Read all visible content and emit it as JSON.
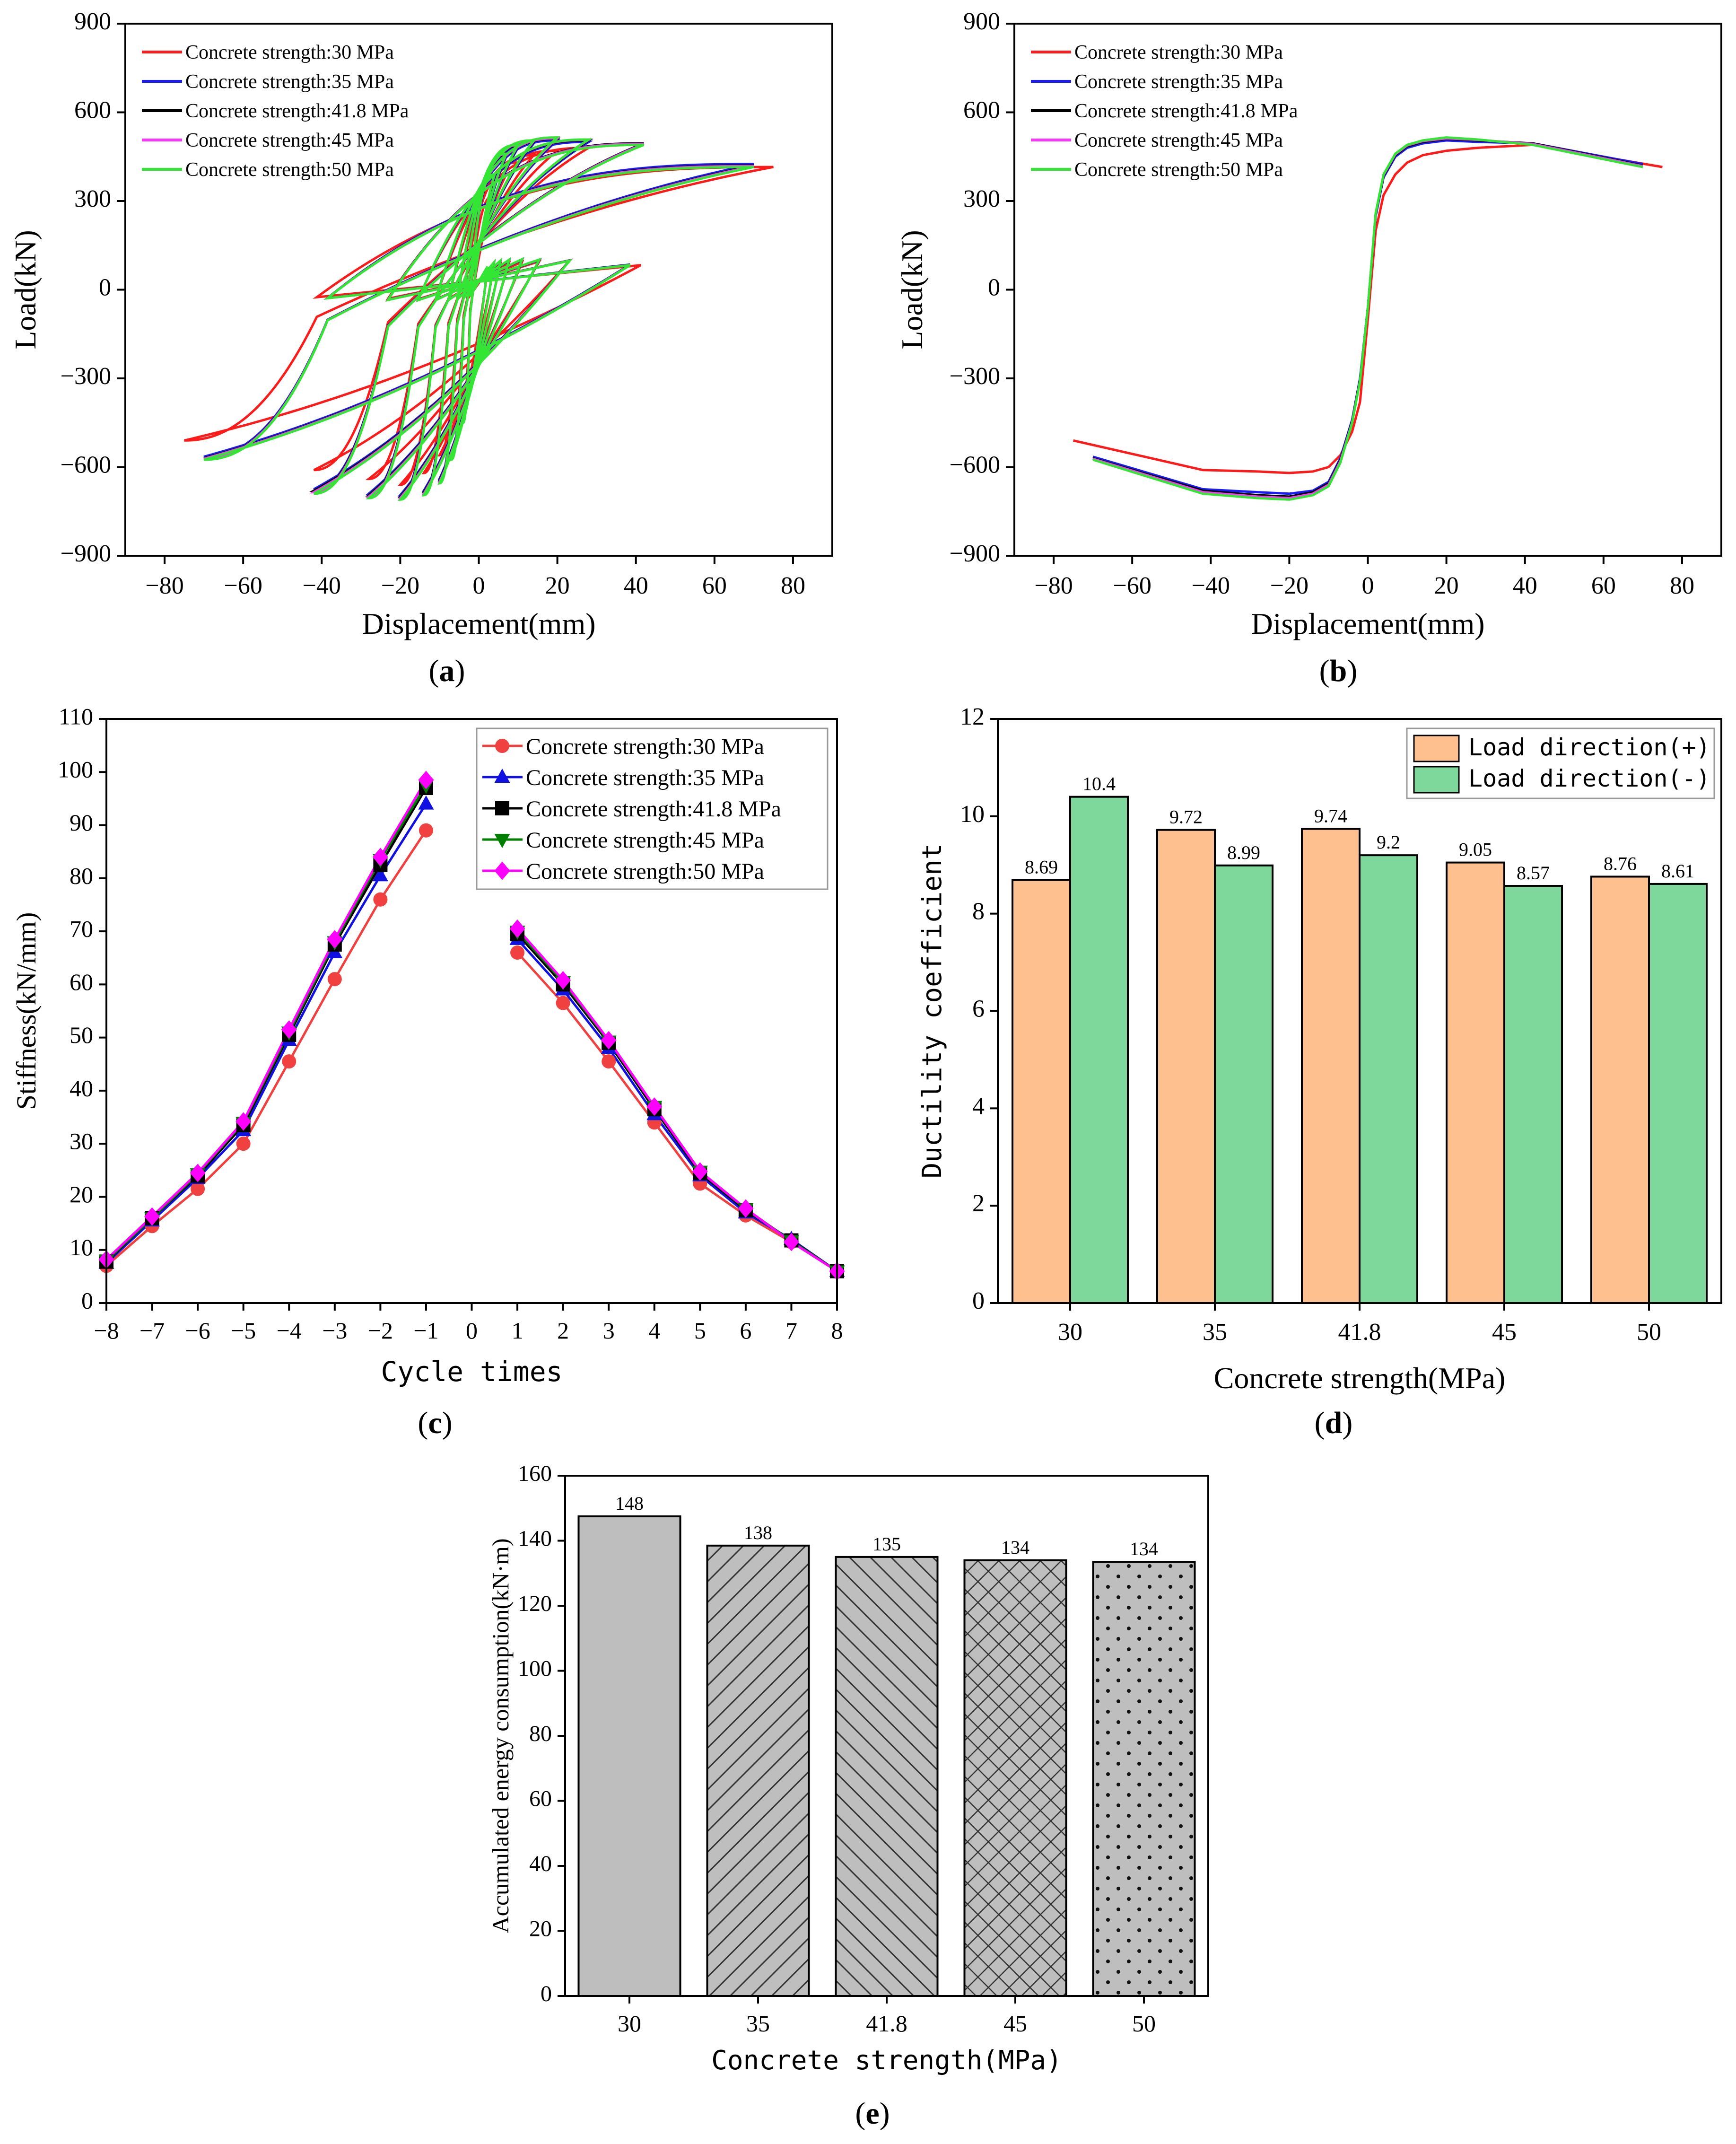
{
  "chart_data": [
    {
      "id": "a",
      "type": "line",
      "panel_label": "(a)",
      "panel_letter": "a",
      "xlabel": "Displacement(mm)",
      "ylabel": "Load(kN)",
      "xlim": [
        -90,
        90
      ],
      "ylim": [
        -900,
        900
      ],
      "xticks": [
        -80,
        -60,
        -40,
        -20,
        0,
        20,
        40,
        60,
        80
      ],
      "yticks": [
        -900,
        -600,
        -300,
        0,
        300,
        600,
        900
      ],
      "legend_position": "top-left",
      "series": [
        {
          "name": "Concrete strength:30 MPa",
          "color": "#ff1a1a",
          "loops": [
            {
              "amp": 75,
              "pos": 415,
              "neg": -510
            },
            {
              "amp": 42,
              "pos": 490,
              "neg": -610
            },
            {
              "amp": 28,
              "pos": 480,
              "neg": -640
            },
            {
              "amp": 20,
              "pos": 470,
              "neg": -660
            },
            {
              "amp": 14,
              "pos": 455,
              "neg": -620
            },
            {
              "amp": 10,
              "pos": 430,
              "neg": -560
            },
            {
              "amp": 7,
              "pos": 390,
              "neg": -480
            },
            {
              "amp": 4,
              "pos": 320,
              "neg": -380
            }
          ]
        },
        {
          "name": "Concrete strength:35 MPa",
          "color": "#1a1aff",
          "loops": [
            {
              "amp": 70,
              "pos": 425,
              "neg": -565
            },
            {
              "amp": 42,
              "pos": 495,
              "neg": -675
            },
            {
              "amp": 28,
              "pos": 500,
              "neg": -690
            },
            {
              "amp": 20,
              "pos": 505,
              "neg": -695
            },
            {
              "amp": 14,
              "pos": 495,
              "neg": -680
            },
            {
              "amp": 10,
              "pos": 480,
              "neg": -640
            },
            {
              "amp": 7,
              "pos": 450,
              "neg": -560
            },
            {
              "amp": 4,
              "pos": 380,
              "neg": -440
            }
          ]
        },
        {
          "name": "Concrete strength:41.8 MPa",
          "color": "#000000",
          "loops": [
            {
              "amp": 70,
              "pos": 420,
              "neg": -570
            },
            {
              "amp": 42,
              "pos": 495,
              "neg": -680
            },
            {
              "amp": 28,
              "pos": 505,
              "neg": -695
            },
            {
              "amp": 20,
              "pos": 510,
              "neg": -700
            },
            {
              "amp": 14,
              "pos": 500,
              "neg": -685
            },
            {
              "amp": 10,
              "pos": 485,
              "neg": -645
            },
            {
              "amp": 7,
              "pos": 455,
              "neg": -565
            },
            {
              "amp": 4,
              "pos": 385,
              "neg": -445
            }
          ]
        },
        {
          "name": "Concrete strength:45 MPa",
          "color": "#ff33ff",
          "loops": [
            {
              "amp": 70,
              "pos": 418,
              "neg": -572
            },
            {
              "amp": 42,
              "pos": 493,
              "neg": -685
            },
            {
              "amp": 28,
              "pos": 507,
              "neg": -700
            },
            {
              "amp": 20,
              "pos": 512,
              "neg": -705
            },
            {
              "amp": 14,
              "pos": 503,
              "neg": -690
            },
            {
              "amp": 10,
              "pos": 488,
              "neg": -650
            },
            {
              "amp": 7,
              "pos": 458,
              "neg": -570
            },
            {
              "amp": 4,
              "pos": 388,
              "neg": -448
            }
          ]
        },
        {
          "name": "Concrete strength:50 MPa",
          "color": "#33e633",
          "loops": [
            {
              "amp": 70,
              "pos": 415,
              "neg": -575
            },
            {
              "amp": 42,
              "pos": 490,
              "neg": -690
            },
            {
              "amp": 28,
              "pos": 508,
              "neg": -705
            },
            {
              "amp": 20,
              "pos": 515,
              "neg": -710
            },
            {
              "amp": 14,
              "pos": 505,
              "neg": -695
            },
            {
              "amp": 10,
              "pos": 490,
              "neg": -655
            },
            {
              "amp": 7,
              "pos": 460,
              "neg": -575
            },
            {
              "amp": 4,
              "pos": 390,
              "neg": -450
            }
          ]
        }
      ]
    },
    {
      "id": "b",
      "type": "line",
      "panel_label": "(b)",
      "panel_letter": "b",
      "xlabel": "Displacement(mm)",
      "ylabel": "Load(kN)",
      "xlim": [
        -90,
        90
      ],
      "ylim": [
        -900,
        900
      ],
      "xticks": [
        -80,
        -60,
        -40,
        -20,
        0,
        20,
        40,
        60,
        80
      ],
      "yticks": [
        -900,
        -600,
        -300,
        0,
        300,
        600,
        900
      ],
      "legend_position": "top-left",
      "series": [
        {
          "name": "Concrete strength:30 MPa",
          "color": "#ff1a1a",
          "x": [
            -75,
            -42,
            -28,
            -20,
            -14,
            -10,
            -7,
            -4,
            -2,
            0,
            2,
            4,
            7,
            10,
            14,
            20,
            28,
            42,
            75
          ],
          "y": [
            -510,
            -610,
            -615,
            -620,
            -615,
            -600,
            -560,
            -480,
            -380,
            -100,
            200,
            320,
            390,
            430,
            455,
            470,
            480,
            490,
            415
          ]
        },
        {
          "name": "Concrete strength:35 MPa",
          "color": "#1a1aff",
          "x": [
            -70,
            -42,
            -28,
            -20,
            -14,
            -10,
            -7,
            -4,
            -2,
            0,
            2,
            4,
            7,
            10,
            14,
            20,
            28,
            42,
            70
          ],
          "y": [
            -565,
            -675,
            -685,
            -690,
            -680,
            -650,
            -570,
            -440,
            -300,
            -60,
            250,
            380,
            450,
            480,
            495,
            505,
            500,
            495,
            425
          ]
        },
        {
          "name": "Concrete strength:41.8 MPa",
          "color": "#000000",
          "x": [
            -70,
            -42,
            -28,
            -20,
            -14,
            -10,
            -7,
            -4,
            -2,
            0,
            2,
            4,
            7,
            10,
            14,
            20,
            28,
            42,
            70
          ],
          "y": [
            -570,
            -680,
            -695,
            -700,
            -685,
            -655,
            -575,
            -445,
            -305,
            -60,
            255,
            385,
            455,
            485,
            500,
            510,
            505,
            495,
            420
          ]
        },
        {
          "name": "Concrete strength:45 MPa",
          "color": "#ff33ff",
          "x": [
            -70,
            -42,
            -28,
            -20,
            -14,
            -10,
            -7,
            -4,
            -2,
            0,
            2,
            4,
            7,
            10,
            14,
            20,
            28,
            42,
            70
          ],
          "y": [
            -572,
            -685,
            -700,
            -705,
            -690,
            -660,
            -580,
            -448,
            -308,
            -60,
            258,
            388,
            458,
            488,
            503,
            512,
            507,
            493,
            418
          ]
        },
        {
          "name": "Concrete strength:50 MPa",
          "color": "#33e633",
          "x": [
            -70,
            -42,
            -28,
            -20,
            -14,
            -10,
            -7,
            -4,
            -2,
            0,
            2,
            4,
            7,
            10,
            14,
            20,
            28,
            42,
            70
          ],
          "y": [
            -575,
            -690,
            -705,
            -710,
            -695,
            -665,
            -585,
            -450,
            -310,
            -60,
            260,
            390,
            460,
            490,
            505,
            515,
            508,
            490,
            415
          ]
        }
      ]
    },
    {
      "id": "c",
      "type": "line",
      "panel_label": "(c)",
      "panel_letter": "c",
      "xlabel": "Cycle times",
      "ylabel": "Stiffness(kN/mm)",
      "xlim": [
        -8,
        8
      ],
      "ylim": [
        0,
        110
      ],
      "xticks": [
        -8,
        -7,
        -6,
        -5,
        -4,
        -3,
        -2,
        -1,
        0,
        1,
        2,
        3,
        4,
        5,
        6,
        7,
        8
      ],
      "yticks": [
        0,
        10,
        20,
        30,
        40,
        50,
        60,
        70,
        80,
        90,
        100,
        110
      ],
      "legend_position": "top-right",
      "x_neg": [
        -8,
        -7,
        -6,
        -5,
        -4,
        -3,
        -2,
        -1
      ],
      "x_pos": [
        1,
        2,
        3,
        4,
        5,
        6,
        7,
        8
      ],
      "series": [
        {
          "name": "Concrete strength:30 MPa",
          "color": "#f04040",
          "marker": "circle",
          "neg": [
            7,
            14.5,
            21.5,
            30,
            45.5,
            61,
            76,
            89
          ],
          "pos": [
            66,
            56.5,
            45.5,
            34,
            22.5,
            16.5,
            11.5,
            6
          ]
        },
        {
          "name": "Concrete strength:35 MPa",
          "color": "#1010e0",
          "marker": "triangle-up",
          "neg": [
            7.5,
            15.5,
            23.5,
            32.5,
            49.5,
            66,
            80.5,
            94
          ],
          "pos": [
            68.5,
            59,
            48,
            35.5,
            24,
            17,
            12,
            6
          ]
        },
        {
          "name": "Concrete strength:41.8 MPa",
          "color": "#000000",
          "marker": "square",
          "neg": [
            7.8,
            16,
            24,
            33.5,
            50.5,
            67.5,
            82.5,
            97
          ],
          "pos": [
            69.5,
            60,
            49,
            36.5,
            24.5,
            17.5,
            11.8,
            6
          ]
        },
        {
          "name": "Concrete strength:45 MPa",
          "color": "#008000",
          "marker": "triangle-down",
          "neg": [
            8,
            16,
            24.3,
            34,
            51,
            68,
            83.5,
            97.5
          ],
          "pos": [
            70,
            60.5,
            49.3,
            37,
            24.8,
            17.7,
            11.7,
            6
          ]
        },
        {
          "name": "Concrete strength:50 MPa",
          "color": "#ff00ff",
          "marker": "diamond",
          "neg": [
            8.2,
            16.3,
            24.5,
            34.2,
            51.5,
            68.5,
            84,
            98.5
          ],
          "pos": [
            70.5,
            60.8,
            49.5,
            37,
            24.8,
            17.8,
            11.5,
            6
          ]
        }
      ]
    },
    {
      "id": "d",
      "type": "bar",
      "panel_label": "(d)",
      "panel_letter": "d",
      "xlabel": "Concrete strength(MPa)",
      "ylabel": "Ductility coefficient",
      "ylim": [
        0,
        12
      ],
      "yticks": [
        0,
        2,
        4,
        6,
        8,
        10,
        12
      ],
      "categories": [
        "30",
        "35",
        "41.8",
        "45",
        "50"
      ],
      "legend_position": "top-right",
      "series": [
        {
          "name": "Load direction(+)",
          "color": "#fdc08e",
          "values": [
            8.69,
            9.72,
            9.74,
            9.05,
            8.76
          ],
          "labels": [
            "8.69",
            "9.72",
            "9.74",
            "9.05",
            "8.76"
          ]
        },
        {
          "name": "Load direction(-)",
          "color": "#7fd89b",
          "values": [
            10.4,
            8.99,
            9.2,
            8.57,
            8.61
          ],
          "labels": [
            "10.4",
            "8.99",
            "9.2",
            "8.57",
            "8.61"
          ]
        }
      ]
    },
    {
      "id": "e",
      "type": "bar",
      "panel_label": "(e)",
      "panel_letter": "e",
      "xlabel": "Concrete strength(MPa)",
      "ylabel": "Accumulated energy consumption(kN·m)",
      "ylim": [
        0,
        160
      ],
      "yticks": [
        0,
        20,
        40,
        60,
        80,
        100,
        120,
        140,
        160
      ],
      "categories": [
        "30",
        "35",
        "41.8",
        "45",
        "50"
      ],
      "values": [
        147.5,
        138.5,
        135,
        134,
        133.5
      ],
      "labels": [
        "148",
        "138",
        "135",
        "134",
        "134"
      ],
      "patterns": [
        "solid",
        "diag-right",
        "diag-left",
        "crosshatch",
        "dots"
      ],
      "fill_color": "#bebebe"
    }
  ]
}
